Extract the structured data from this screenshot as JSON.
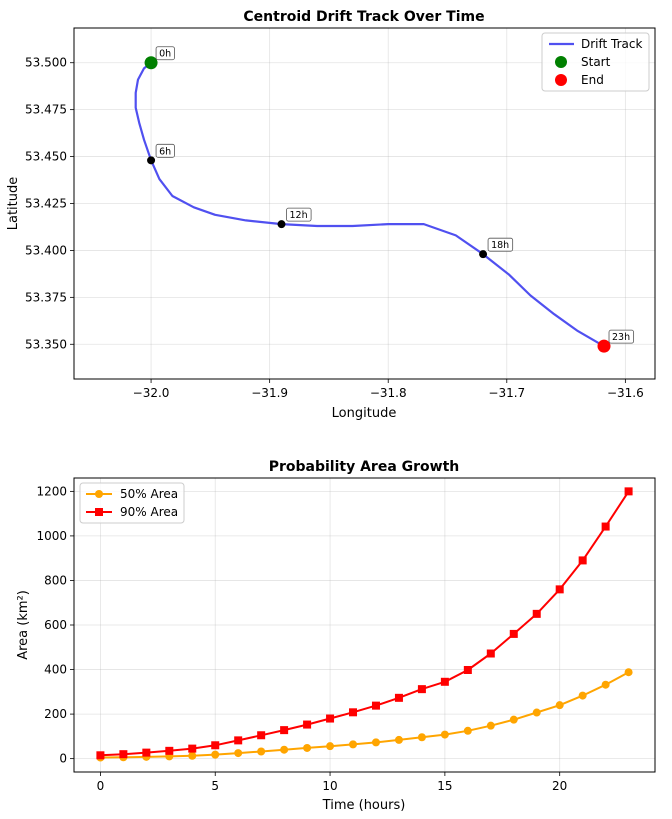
{
  "chart_data": [
    {
      "type": "line",
      "title": "Centroid Drift Track Over Time",
      "xlabel": "Longitude",
      "ylabel": "Latitude",
      "xlim": [
        -32.065,
        -31.575
      ],
      "ylim": [
        53.3315,
        53.5185
      ],
      "xticks": [
        -32.0,
        -31.9,
        -31.8,
        -31.7,
        -31.6
      ],
      "xtick_labels": [
        "−32.0",
        "−31.9",
        "−31.8",
        "−31.7",
        "−31.6"
      ],
      "yticks": [
        53.35,
        53.375,
        53.4,
        53.425,
        53.45,
        53.475,
        53.5
      ],
      "ytick_labels": [
        "53.350",
        "53.375",
        "53.400",
        "53.425",
        "53.450",
        "53.475",
        "53.500"
      ],
      "grid": true,
      "colors": {
        "track": "#5050f0",
        "start": "#008000",
        "end": "#ff0000",
        "marker": "#000000"
      },
      "series": [
        {
          "name": "Drift Track",
          "x": [
            -32.0,
            -32.006,
            -32.011,
            -32.013,
            -32.013,
            -32.01,
            -32.006,
            -32.0,
            -31.993,
            -31.982,
            -31.964,
            -31.946,
            -31.92,
            -31.89,
            -31.86,
            -31.83,
            -31.8,
            -31.77,
            -31.743,
            -31.72,
            -31.698,
            -31.68,
            -31.66,
            -31.64,
            -31.618
          ],
          "y": [
            53.5,
            53.497,
            53.491,
            53.484,
            53.476,
            53.468,
            53.459,
            53.448,
            53.438,
            53.429,
            53.423,
            53.419,
            53.416,
            53.414,
            53.413,
            53.413,
            53.414,
            53.414,
            53.408,
            53.398,
            53.387,
            53.376,
            53.366,
            53.357,
            53.349
          ]
        }
      ],
      "points": [
        {
          "label": "0h",
          "x": -32.0,
          "y": 53.5
        },
        {
          "label": "6h",
          "x": -32.0,
          "y": 53.448
        },
        {
          "label": "12h",
          "x": -31.89,
          "y": 53.414
        },
        {
          "label": "18h",
          "x": -31.72,
          "y": 53.398
        },
        {
          "label": "23h",
          "x": -31.618,
          "y": 53.349
        }
      ],
      "start": {
        "name": "Start",
        "x": -32.0,
        "y": 53.5
      },
      "end": {
        "name": "End",
        "x": -31.618,
        "y": 53.349
      },
      "legend": {
        "position": "top-right",
        "entries": [
          "Drift Track",
          "Start",
          "End"
        ]
      }
    },
    {
      "type": "line",
      "title": "Probability Area Growth",
      "xlabel": "Time (hours)",
      "ylabel": "Area (km²)",
      "xlim": [
        -1.15,
        24.15
      ],
      "ylim": [
        -60,
        1260
      ],
      "xticks": [
        0,
        5,
        10,
        15,
        20
      ],
      "xtick_labels": [
        "0",
        "5",
        "10",
        "15",
        "20"
      ],
      "yticks": [
        0,
        200,
        400,
        600,
        800,
        1000,
        1200
      ],
      "ytick_labels": [
        "0",
        "200",
        "400",
        "600",
        "800",
        "1000",
        "1200"
      ],
      "grid": true,
      "x": [
        0,
        1,
        2,
        3,
        4,
        5,
        6,
        7,
        8,
        9,
        10,
        11,
        12,
        13,
        14,
        15,
        16,
        17,
        18,
        19,
        20,
        21,
        22,
        23
      ],
      "series": [
        {
          "name": "50% Area",
          "color": "#ffa500",
          "marker": "circle",
          "values": [
            5,
            6,
            8,
            10,
            13,
            18,
            25,
            32,
            40,
            48,
            56,
            64,
            73,
            84,
            96,
            108,
            125,
            148,
            175,
            207,
            240,
            283,
            332,
            388
          ]
        },
        {
          "name": "90% Area",
          "color": "#ff0000",
          "marker": "square",
          "values": [
            15,
            20,
            27,
            35,
            45,
            60,
            82,
            105,
            128,
            153,
            180,
            208,
            238,
            273,
            312,
            345,
            398,
            472,
            560,
            650,
            760,
            890,
            1042,
            1200
          ]
        }
      ],
      "legend": {
        "position": "top-left",
        "entries": [
          "50% Area",
          "90% Area"
        ]
      }
    }
  ]
}
